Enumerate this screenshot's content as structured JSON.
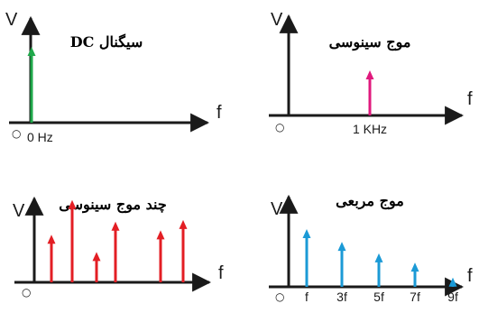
{
  "panels": {
    "dc": {
      "title": "سیگنال DC",
      "ylabel": "V",
      "xlabel": "f",
      "origin": "○",
      "tick": "0 Hz",
      "color": "#1fa84a"
    },
    "sine": {
      "title": "موج سینوسی",
      "ylabel": "V",
      "xlabel": "f",
      "origin": "○",
      "tick": "1 KHz",
      "color": "#e0197d"
    },
    "multi": {
      "title": "چند موج سینوسی",
      "ylabel": "V",
      "xlabel": "f",
      "origin": "○",
      "color": "#e31e24"
    },
    "square": {
      "title": "موج مربعی",
      "ylabel": "V",
      "xlabel": "f",
      "origin": "○",
      "ticks": [
        "f",
        "3f",
        "5f",
        "7f",
        "9f"
      ],
      "color": "#1b9ad6"
    }
  },
  "chart_data": [
    {
      "type": "bar",
      "title": "سیگنال DC",
      "xlabel": "f",
      "ylabel": "V",
      "categories": [
        "0 Hz"
      ],
      "values": [
        1.0
      ]
    },
    {
      "type": "bar",
      "title": "موج سینوسی",
      "xlabel": "f",
      "ylabel": "V",
      "categories": [
        "1 KHz"
      ],
      "values": [
        1.0
      ]
    },
    {
      "type": "bar",
      "title": "چند موج سینوسی",
      "xlabel": "f",
      "ylabel": "V",
      "x": [
        1,
        2,
        3,
        4,
        5,
        6
      ],
      "values": [
        0.55,
        0.95,
        0.35,
        0.7,
        0.6,
        0.72
      ]
    },
    {
      "type": "bar",
      "title": "موج مربعی",
      "xlabel": "f",
      "ylabel": "V",
      "categories": [
        "f",
        "3f",
        "5f",
        "7f",
        "9f"
      ],
      "values": [
        1.0,
        0.78,
        0.58,
        0.42,
        0.16
      ]
    }
  ]
}
